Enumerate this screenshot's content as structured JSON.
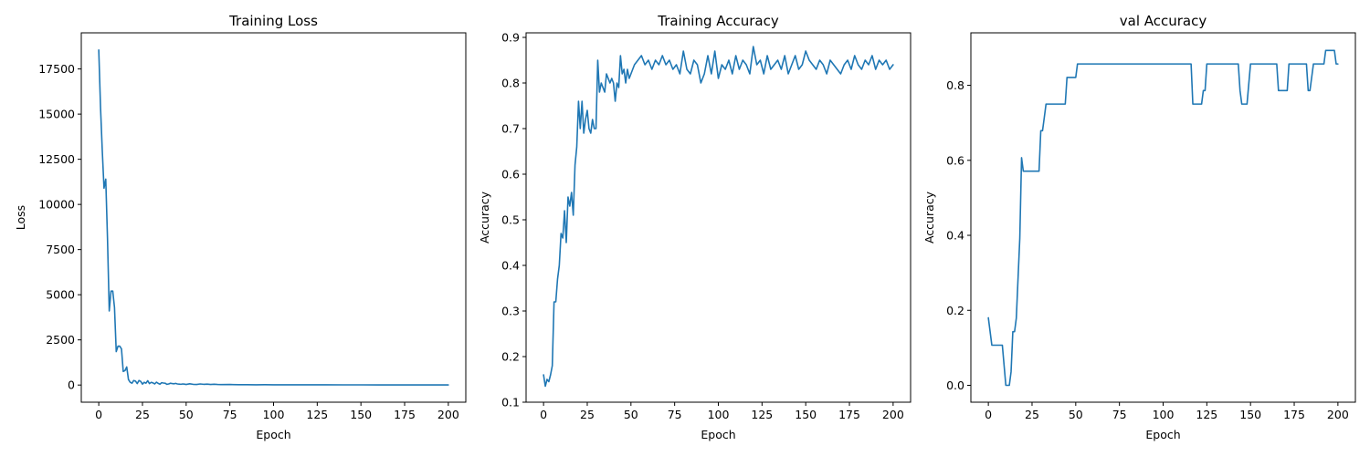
{
  "chart_data": [
    {
      "type": "line",
      "title": "Training Loss",
      "xlabel": "Epoch",
      "ylabel": "Loss",
      "xlim": [
        -10,
        210
      ],
      "ylim": [
        -950,
        19500
      ],
      "xticks": [
        0,
        25,
        50,
        75,
        100,
        125,
        150,
        175,
        200
      ],
      "yticks": [
        0,
        2500,
        5000,
        7500,
        10000,
        12500,
        15000,
        17500
      ],
      "grid": false,
      "color": "#1f77b4",
      "series": [
        {
          "x": [
            0,
            1,
            2,
            3,
            4,
            5,
            6,
            7,
            8,
            9,
            10,
            11,
            12,
            13,
            14,
            15,
            16,
            17,
            18,
            19,
            20,
            21,
            22,
            23,
            24,
            25,
            26,
            27,
            28,
            29,
            30,
            31,
            32,
            33,
            34,
            35,
            36,
            37,
            38,
            39,
            40,
            41,
            42,
            43,
            44,
            45,
            46,
            47,
            48,
            49,
            50,
            52,
            54,
            56,
            58,
            60,
            62,
            64,
            66,
            68,
            70,
            75,
            80,
            85,
            90,
            95,
            100,
            110,
            120,
            130,
            140,
            150,
            160,
            170,
            180,
            190,
            200
          ],
          "values": [
            18550,
            15400,
            13000,
            10900,
            11400,
            8100,
            4100,
            5200,
            5200,
            4300,
            1850,
            2150,
            2150,
            2000,
            750,
            800,
            1000,
            300,
            150,
            100,
            250,
            220,
            80,
            250,
            200,
            50,
            150,
            100,
            240,
            80,
            150,
            120,
            60,
            160,
            90,
            50,
            130,
            110,
            100,
            40,
            60,
            100,
            80,
            70,
            90,
            60,
            50,
            40,
            60,
            50,
            30,
            70,
            40,
            30,
            60,
            40,
            50,
            30,
            45,
            30,
            25,
            30,
            20,
            20,
            15,
            20,
            15,
            15,
            12,
            12,
            10,
            10,
            8,
            8,
            8,
            8,
            8
          ]
        }
      ]
    },
    {
      "type": "line",
      "title": "Training Accuracy",
      "xlabel": "Epoch",
      "ylabel": "Accuracy",
      "xlim": [
        -10,
        210
      ],
      "ylim": [
        0.1,
        0.91
      ],
      "xticks": [
        0,
        25,
        50,
        75,
        100,
        125,
        150,
        175,
        200
      ],
      "yticks": [
        0.1,
        0.2,
        0.3,
        0.4,
        0.5,
        0.6,
        0.7,
        0.8,
        0.9
      ],
      "grid": false,
      "color": "#1f77b4",
      "series": [
        {
          "x": [
            0,
            1,
            2,
            3,
            4,
            5,
            6,
            7,
            8,
            9,
            10,
            11,
            12,
            13,
            14,
            15,
            16,
            17,
            18,
            19,
            20,
            21,
            22,
            23,
            24,
            25,
            26,
            27,
            28,
            29,
            30,
            31,
            32,
            33,
            34,
            35,
            36,
            37,
            38,
            39,
            40,
            41,
            42,
            43,
            44,
            45,
            46,
            47,
            48,
            49,
            50,
            52,
            54,
            56,
            58,
            60,
            62,
            64,
            66,
            68,
            70,
            72,
            74,
            76,
            78,
            80,
            82,
            84,
            86,
            88,
            90,
            92,
            94,
            96,
            98,
            100,
            102,
            104,
            106,
            108,
            110,
            112,
            114,
            116,
            118,
            120,
            122,
            124,
            126,
            128,
            130,
            132,
            134,
            136,
            138,
            140,
            142,
            144,
            146,
            148,
            150,
            152,
            154,
            156,
            158,
            160,
            162,
            164,
            166,
            168,
            170,
            172,
            174,
            176,
            178,
            180,
            182,
            184,
            186,
            188,
            190,
            192,
            194,
            196,
            198,
            200
          ],
          "values": [
            0.16,
            0.135,
            0.15,
            0.145,
            0.16,
            0.18,
            0.32,
            0.32,
            0.37,
            0.4,
            0.47,
            0.46,
            0.52,
            0.45,
            0.55,
            0.53,
            0.56,
            0.51,
            0.62,
            0.66,
            0.76,
            0.7,
            0.76,
            0.69,
            0.72,
            0.74,
            0.7,
            0.69,
            0.72,
            0.7,
            0.7,
            0.85,
            0.78,
            0.8,
            0.79,
            0.78,
            0.82,
            0.81,
            0.8,
            0.81,
            0.8,
            0.76,
            0.8,
            0.79,
            0.86,
            0.82,
            0.83,
            0.8,
            0.83,
            0.81,
            0.82,
            0.84,
            0.85,
            0.86,
            0.84,
            0.85,
            0.83,
            0.85,
            0.84,
            0.86,
            0.84,
            0.85,
            0.83,
            0.84,
            0.82,
            0.87,
            0.83,
            0.82,
            0.85,
            0.84,
            0.8,
            0.82,
            0.86,
            0.82,
            0.87,
            0.81,
            0.84,
            0.83,
            0.85,
            0.82,
            0.86,
            0.83,
            0.85,
            0.84,
            0.82,
            0.88,
            0.84,
            0.85,
            0.82,
            0.86,
            0.83,
            0.84,
            0.85,
            0.83,
            0.86,
            0.82,
            0.84,
            0.86,
            0.83,
            0.84,
            0.87,
            0.85,
            0.84,
            0.83,
            0.85,
            0.84,
            0.82,
            0.85,
            0.84,
            0.83,
            0.82,
            0.84,
            0.85,
            0.83,
            0.86,
            0.84,
            0.83,
            0.85,
            0.84,
            0.86,
            0.83,
            0.85,
            0.84,
            0.85,
            0.83,
            0.84
          ]
        }
      ]
    },
    {
      "type": "line",
      "title": "val Accuracy",
      "xlabel": "Epoch",
      "ylabel": "Accuracy",
      "xlim": [
        -10,
        210
      ],
      "ylim": [
        -0.045,
        0.94
      ],
      "xticks": [
        0,
        25,
        50,
        75,
        100,
        125,
        150,
        175,
        200
      ],
      "yticks": [
        0.0,
        0.2,
        0.4,
        0.6,
        0.8
      ],
      "grid": false,
      "color": "#1f77b4",
      "series": [
        {
          "x": [
            0,
            2,
            3,
            4,
            6,
            8,
            10,
            11,
            12,
            13,
            14,
            15,
            16,
            18,
            19,
            20,
            22,
            24,
            26,
            28,
            29,
            30,
            31,
            32,
            33,
            34,
            36,
            38,
            40,
            42,
            44,
            45,
            46,
            48,
            50,
            51,
            55,
            60,
            70,
            80,
            90,
            100,
            110,
            116,
            117,
            118,
            120,
            122,
            123,
            124,
            125,
            130,
            140,
            143,
            144,
            145,
            146,
            148,
            150,
            152,
            160,
            165,
            166,
            167,
            168,
            170,
            171,
            172,
            175,
            180,
            182,
            183,
            184,
            186,
            188,
            190,
            192,
            193,
            195,
            197,
            198,
            199,
            200
          ],
          "values": [
            0.18,
            0.107,
            0.107,
            0.107,
            0.107,
            0.107,
            0.0,
            0.0,
            0.0,
            0.036,
            0.143,
            0.143,
            0.179,
            0.393,
            0.607,
            0.571,
            0.571,
            0.571,
            0.571,
            0.571,
            0.571,
            0.679,
            0.679,
            0.714,
            0.75,
            0.75,
            0.75,
            0.75,
            0.75,
            0.75,
            0.75,
            0.821,
            0.821,
            0.821,
            0.821,
            0.857,
            0.857,
            0.857,
            0.857,
            0.857,
            0.857,
            0.857,
            0.857,
            0.857,
            0.75,
            0.75,
            0.75,
            0.75,
            0.786,
            0.786,
            0.857,
            0.857,
            0.857,
            0.857,
            0.786,
            0.75,
            0.75,
            0.75,
            0.857,
            0.857,
            0.857,
            0.857,
            0.786,
            0.786,
            0.786,
            0.786,
            0.786,
            0.857,
            0.857,
            0.857,
            0.857,
            0.786,
            0.786,
            0.857,
            0.857,
            0.857,
            0.857,
            0.893,
            0.893,
            0.893,
            0.893,
            0.857,
            0.857
          ]
        }
      ]
    }
  ]
}
